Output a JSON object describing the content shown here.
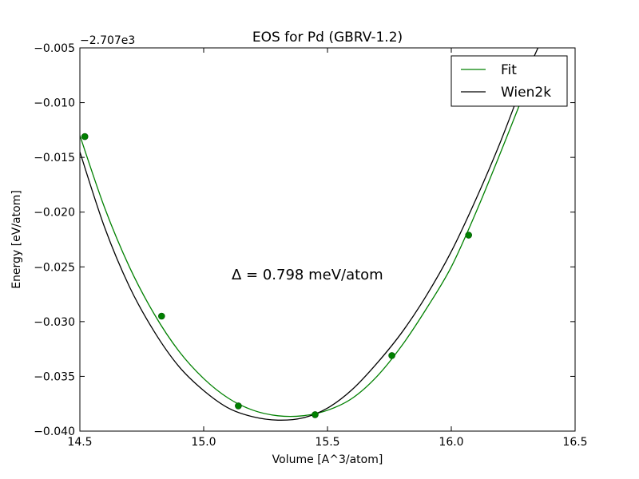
{
  "chart_data": {
    "type": "line",
    "title": "EOS for Pd (GBRV-1.2)",
    "xlabel": "Volume [A^3/atom]",
    "ylabel": "Energy [eV/atom]",
    "offset_label": "−2.707e3",
    "annotation": "Δ = 0.798 meV/atom",
    "xlim": [
      14.5,
      16.5
    ],
    "ylim": [
      -0.04,
      -0.005
    ],
    "x_ticks": [
      14.5,
      15.0,
      15.5,
      16.0,
      16.5
    ],
    "x_tick_labels": [
      "14.5",
      "15.0",
      "15.5",
      "16.0",
      "16.5"
    ],
    "y_ticks": [
      -0.04,
      -0.035,
      -0.03,
      -0.025,
      -0.02,
      -0.015,
      -0.01,
      -0.005
    ],
    "y_tick_labels": [
      "−0.040",
      "−0.035",
      "−0.030",
      "−0.025",
      "−0.020",
      "−0.015",
      "−0.010",
      "−0.005"
    ],
    "grid": false,
    "legend_position": "top-right",
    "series": [
      {
        "name": "Fit",
        "color": "#008000",
        "x": [
          14.5,
          14.6,
          14.7,
          14.8,
          14.9,
          15.0,
          15.1,
          15.2,
          15.3,
          15.4,
          15.5,
          15.6,
          15.7,
          15.8,
          15.9,
          16.0,
          16.1,
          16.2,
          16.3,
          16.35
        ],
        "y": [
          -0.013,
          -0.0196,
          -0.025,
          -0.0293,
          -0.0327,
          -0.0352,
          -0.037,
          -0.0381,
          -0.0386,
          -0.0386,
          -0.0381,
          -0.037,
          -0.035,
          -0.0322,
          -0.0288,
          -0.025,
          -0.02,
          -0.0145,
          -0.0088,
          -0.006
        ]
      },
      {
        "name": "Wien2k",
        "color": "#000000",
        "x": [
          14.5,
          14.6,
          14.7,
          14.8,
          14.9,
          15.0,
          15.1,
          15.2,
          15.3,
          15.4,
          15.5,
          15.6,
          15.7,
          15.8,
          15.9,
          16.0,
          16.1,
          16.2,
          16.3,
          16.35
        ],
        "y": [
          -0.0145,
          -0.0214,
          -0.0268,
          -0.0309,
          -0.0341,
          -0.0363,
          -0.0379,
          -0.0387,
          -0.039,
          -0.0388,
          -0.0379,
          -0.0362,
          -0.0338,
          -0.031,
          -0.0276,
          -0.0236,
          -0.0188,
          -0.0135,
          -0.0076,
          -0.005
        ]
      }
    ],
    "points": {
      "color": "#008000",
      "x": [
        14.52,
        14.83,
        15.14,
        15.45,
        15.76,
        16.07
      ],
      "y": [
        -0.0131,
        -0.0295,
        -0.0377,
        -0.0385,
        -0.0331,
        -0.0221
      ]
    }
  }
}
